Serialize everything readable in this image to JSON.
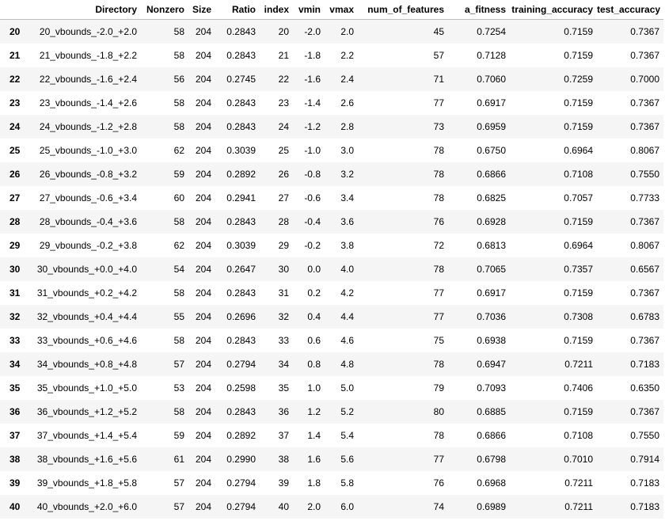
{
  "table": {
    "columns": [
      "",
      "Directory",
      "Nonzero",
      "Size",
      "Ratio",
      "index",
      "vmin",
      "vmax",
      "num_of_features",
      "a_fitness",
      "training_accuracy",
      "test_accuracy"
    ],
    "rows": [
      [
        "20",
        "20_vbounds_-2.0_+2.0",
        "58",
        "204",
        "0.2843",
        "20",
        "-2.0",
        "2.0",
        "45",
        "0.7254",
        "0.7159",
        "0.7367"
      ],
      [
        "21",
        "21_vbounds_-1.8_+2.2",
        "58",
        "204",
        "0.2843",
        "21",
        "-1.8",
        "2.2",
        "57",
        "0.7128",
        "0.7159",
        "0.7367"
      ],
      [
        "22",
        "22_vbounds_-1.6_+2.4",
        "56",
        "204",
        "0.2745",
        "22",
        "-1.6",
        "2.4",
        "71",
        "0.7060",
        "0.7259",
        "0.7000"
      ],
      [
        "23",
        "23_vbounds_-1.4_+2.6",
        "58",
        "204",
        "0.2843",
        "23",
        "-1.4",
        "2.6",
        "77",
        "0.6917",
        "0.7159",
        "0.7367"
      ],
      [
        "24",
        "24_vbounds_-1.2_+2.8",
        "58",
        "204",
        "0.2843",
        "24",
        "-1.2",
        "2.8",
        "73",
        "0.6959",
        "0.7159",
        "0.7367"
      ],
      [
        "25",
        "25_vbounds_-1.0_+3.0",
        "62",
        "204",
        "0.3039",
        "25",
        "-1.0",
        "3.0",
        "78",
        "0.6750",
        "0.6964",
        "0.8067"
      ],
      [
        "26",
        "26_vbounds_-0.8_+3.2",
        "59",
        "204",
        "0.2892",
        "26",
        "-0.8",
        "3.2",
        "78",
        "0.6866",
        "0.7108",
        "0.7550"
      ],
      [
        "27",
        "27_vbounds_-0.6_+3.4",
        "60",
        "204",
        "0.2941",
        "27",
        "-0.6",
        "3.4",
        "78",
        "0.6825",
        "0.7057",
        "0.7733"
      ],
      [
        "28",
        "28_vbounds_-0.4_+3.6",
        "58",
        "204",
        "0.2843",
        "28",
        "-0.4",
        "3.6",
        "76",
        "0.6928",
        "0.7159",
        "0.7367"
      ],
      [
        "29",
        "29_vbounds_-0.2_+3.8",
        "62",
        "204",
        "0.3039",
        "29",
        "-0.2",
        "3.8",
        "72",
        "0.6813",
        "0.6964",
        "0.8067"
      ],
      [
        "30",
        "30_vbounds_+0.0_+4.0",
        "54",
        "204",
        "0.2647",
        "30",
        "0.0",
        "4.0",
        "78",
        "0.7065",
        "0.7357",
        "0.6567"
      ],
      [
        "31",
        "31_vbounds_+0.2_+4.2",
        "58",
        "204",
        "0.2843",
        "31",
        "0.2",
        "4.2",
        "77",
        "0.6917",
        "0.7159",
        "0.7367"
      ],
      [
        "32",
        "32_vbounds_+0.4_+4.4",
        "55",
        "204",
        "0.2696",
        "32",
        "0.4",
        "4.4",
        "77",
        "0.7036",
        "0.7308",
        "0.6783"
      ],
      [
        "33",
        "33_vbounds_+0.6_+4.6",
        "58",
        "204",
        "0.2843",
        "33",
        "0.6",
        "4.6",
        "75",
        "0.6938",
        "0.7159",
        "0.7367"
      ],
      [
        "34",
        "34_vbounds_+0.8_+4.8",
        "57",
        "204",
        "0.2794",
        "34",
        "0.8",
        "4.8",
        "78",
        "0.6947",
        "0.7211",
        "0.7183"
      ],
      [
        "35",
        "35_vbounds_+1.0_+5.0",
        "53",
        "204",
        "0.2598",
        "35",
        "1.0",
        "5.0",
        "79",
        "0.7093",
        "0.7406",
        "0.6350"
      ],
      [
        "36",
        "36_vbounds_+1.2_+5.2",
        "58",
        "204",
        "0.2843",
        "36",
        "1.2",
        "5.2",
        "80",
        "0.6885",
        "0.7159",
        "0.7367"
      ],
      [
        "37",
        "37_vbounds_+1.4_+5.4",
        "59",
        "204",
        "0.2892",
        "37",
        "1.4",
        "5.4",
        "78",
        "0.6866",
        "0.7108",
        "0.7550"
      ],
      [
        "38",
        "38_vbounds_+1.6_+5.6",
        "61",
        "204",
        "0.2990",
        "38",
        "1.6",
        "5.6",
        "77",
        "0.6798",
        "0.7010",
        "0.7914"
      ],
      [
        "39",
        "39_vbounds_+1.8_+5.8",
        "57",
        "204",
        "0.2794",
        "39",
        "1.8",
        "5.8",
        "76",
        "0.6968",
        "0.7211",
        "0.7183"
      ],
      [
        "40",
        "40_vbounds_+2.0_+6.0",
        "57",
        "204",
        "0.2794",
        "40",
        "2.0",
        "6.0",
        "74",
        "0.6989",
        "0.7211",
        "0.7183"
      ]
    ]
  }
}
